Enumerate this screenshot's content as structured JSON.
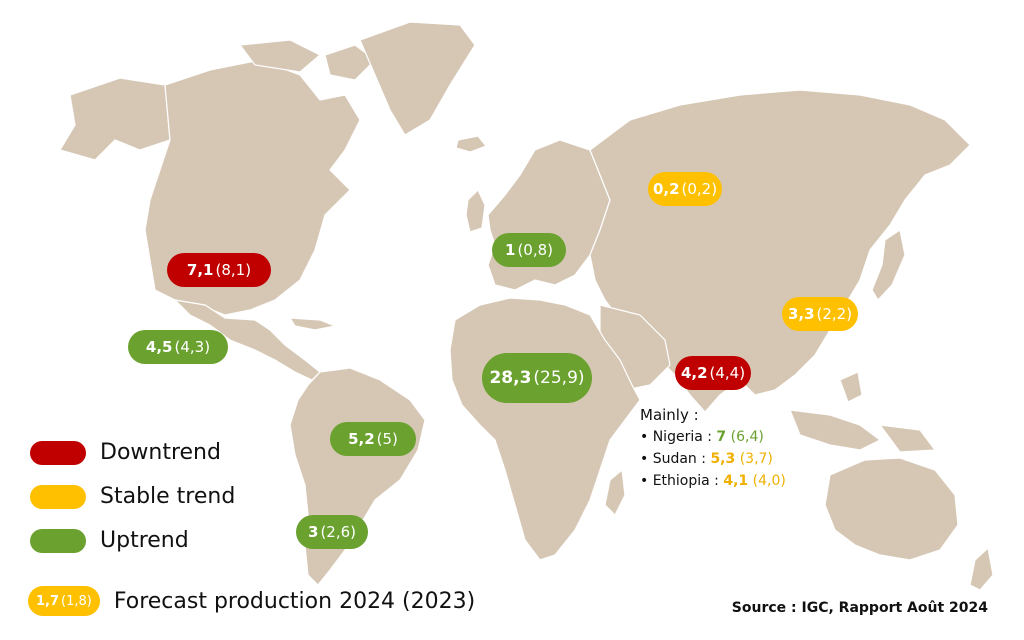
{
  "map_labels": [
    {
      "id": "usa",
      "value": "7,1",
      "previous": "(8,1)",
      "trend": "down"
    },
    {
      "id": "mexico",
      "value": "4,5",
      "previous": "(4,3)",
      "trend": "up"
    },
    {
      "id": "brazil",
      "value": "5,2",
      "previous": "(5)",
      "trend": "up"
    },
    {
      "id": "argentina",
      "value": "3",
      "previous": "(2,6)",
      "trend": "up"
    },
    {
      "id": "europe",
      "value": "1",
      "previous": "(0,8)",
      "trend": "up"
    },
    {
      "id": "africa",
      "value": "28,3",
      "previous": "(25,9)",
      "trend": "up"
    },
    {
      "id": "russia",
      "value": "0,2",
      "previous": "(0,2)",
      "trend": "stable"
    },
    {
      "id": "india",
      "value": "4,2",
      "previous": "(4,4)",
      "trend": "down"
    },
    {
      "id": "china",
      "value": "3,3",
      "previous": "(2,2)",
      "trend": "stable"
    }
  ],
  "legend": {
    "downtrend": "Downtrend",
    "stable": "Stable trend",
    "uptrend": "Uptrend"
  },
  "forecast": {
    "value": "1,7",
    "previous": "(1,8)",
    "label": "Forecast production 2024 (2023)"
  },
  "mainly": {
    "title": "Mainly  :",
    "items": [
      {
        "country": "• Nigeria :",
        "value": "7",
        "previous": "(6,4)",
        "trend": "up"
      },
      {
        "country": "• Sudan :",
        "value": "5,3",
        "previous": "(3,7)",
        "trend": "stable"
      },
      {
        "country": "• Ethiopia :",
        "value": "4,1",
        "previous": "(4,0)",
        "trend": "stable"
      }
    ]
  },
  "source": "Source : IGC, Rapport Août 2024",
  "colors": {
    "downtrend": "#c00000",
    "stable": "#ffc000",
    "uptrend": "#6aa12f",
    "land": "#d6c7b5"
  }
}
